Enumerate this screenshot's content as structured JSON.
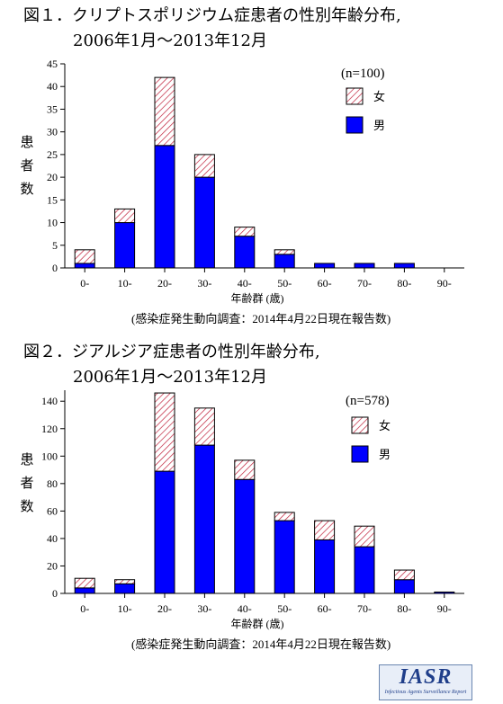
{
  "chart_data": [
    {
      "type": "bar",
      "stacked": true,
      "title_line1": "図１．クリプトスポリジウム症患者の性別年齢分布,",
      "title_line2": "2006年1月～2013年12月",
      "categories": [
        "0-",
        "10-",
        "20-",
        "30-",
        "40-",
        "50-",
        "60-",
        "70-",
        "80-",
        "90-"
      ],
      "series": [
        {
          "name": "男",
          "values": [
            1,
            10,
            27,
            20,
            7,
            3,
            1,
            1,
            1,
            0
          ],
          "color": "#0000ff",
          "pattern": "solid"
        },
        {
          "name": "女",
          "values": [
            3,
            3,
            15,
            5,
            2,
            1,
            0,
            0,
            0,
            0
          ],
          "color": "#c0203a",
          "pattern": "hatch"
        }
      ],
      "ylim": [
        0,
        45
      ],
      "yticks": [
        0,
        5,
        10,
        15,
        20,
        25,
        30,
        35,
        40,
        45
      ],
      "ylabel_chars": [
        "患",
        "者",
        "数"
      ],
      "xlabel": "年齢群 (歳)",
      "n_label": "(n=100)",
      "source": "(感染症発生動向調査：2014年4月22日現在報告数)",
      "legend_position": "top-right"
    },
    {
      "type": "bar",
      "stacked": true,
      "title_line1": "図２．ジアルジア症患者の性別年齢分布,",
      "title_line2": "2006年1月～2013年12月",
      "categories": [
        "0-",
        "10-",
        "20-",
        "30-",
        "40-",
        "50-",
        "60-",
        "70-",
        "80-",
        "90-"
      ],
      "series": [
        {
          "name": "男",
          "values": [
            4,
            7,
            89,
            108,
            83,
            53,
            39,
            34,
            10,
            1
          ],
          "color": "#0000ff",
          "pattern": "solid"
        },
        {
          "name": "女",
          "values": [
            7,
            3,
            57,
            27,
            14,
            6,
            14,
            15,
            7,
            0
          ],
          "color": "#c0203a",
          "pattern": "hatch"
        }
      ],
      "ylim": [
        0,
        148
      ],
      "yticks": [
        0,
        20,
        40,
        60,
        80,
        100,
        120,
        140
      ],
      "ylabel_chars": [
        "患",
        "者",
        "数"
      ],
      "xlabel": "年齢群 (歳)",
      "n_label": "(n=578)",
      "source": "(感染症発生動向調査：2014年4月22日現在報告数)",
      "legend_position": "top-right"
    }
  ],
  "logo": {
    "text": "IASR",
    "subtext": "Infectious Agents Surveillance Report"
  }
}
